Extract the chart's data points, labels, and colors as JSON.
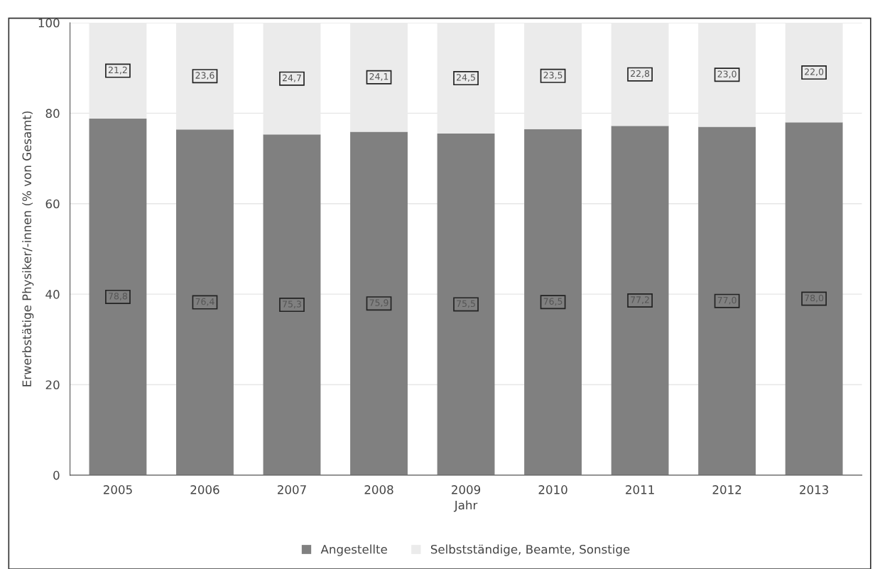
{
  "chart_data": {
    "type": "bar",
    "stacked": true,
    "xlabel": "Jahr",
    "ylabel": "Erwerbstätige Physiker/-innen (% von Gesamt)",
    "categories": [
      "2005",
      "2006",
      "2007",
      "2008",
      "2009",
      "2010",
      "2011",
      "2012",
      "2013"
    ],
    "series": [
      {
        "name": "Angestellte",
        "color": "#808080",
        "values": [
          78.8,
          76.4,
          75.3,
          75.9,
          75.5,
          76.5,
          77.2,
          77.0,
          78.0
        ],
        "value_labels": [
          "78,8",
          "76,4",
          "75,3",
          "75,9",
          "75,5",
          "76,5",
          "77,2",
          "77,0",
          "78,0"
        ]
      },
      {
        "name": "Selbstständige, Beamte, Sonstige",
        "color": "#ebebeb",
        "values": [
          21.2,
          23.6,
          24.7,
          24.1,
          24.5,
          23.5,
          22.8,
          23.0,
          22.0
        ],
        "value_labels": [
          "21,2",
          "23,6",
          "24,7",
          "24,1",
          "24,5",
          "23,5",
          "22,8",
          "23,0",
          "22,0"
        ]
      }
    ],
    "ylim": [
      0,
      100
    ],
    "yticks": [
      0,
      20,
      40,
      60,
      80,
      100
    ],
    "grid": "y",
    "legend": "bottom"
  }
}
